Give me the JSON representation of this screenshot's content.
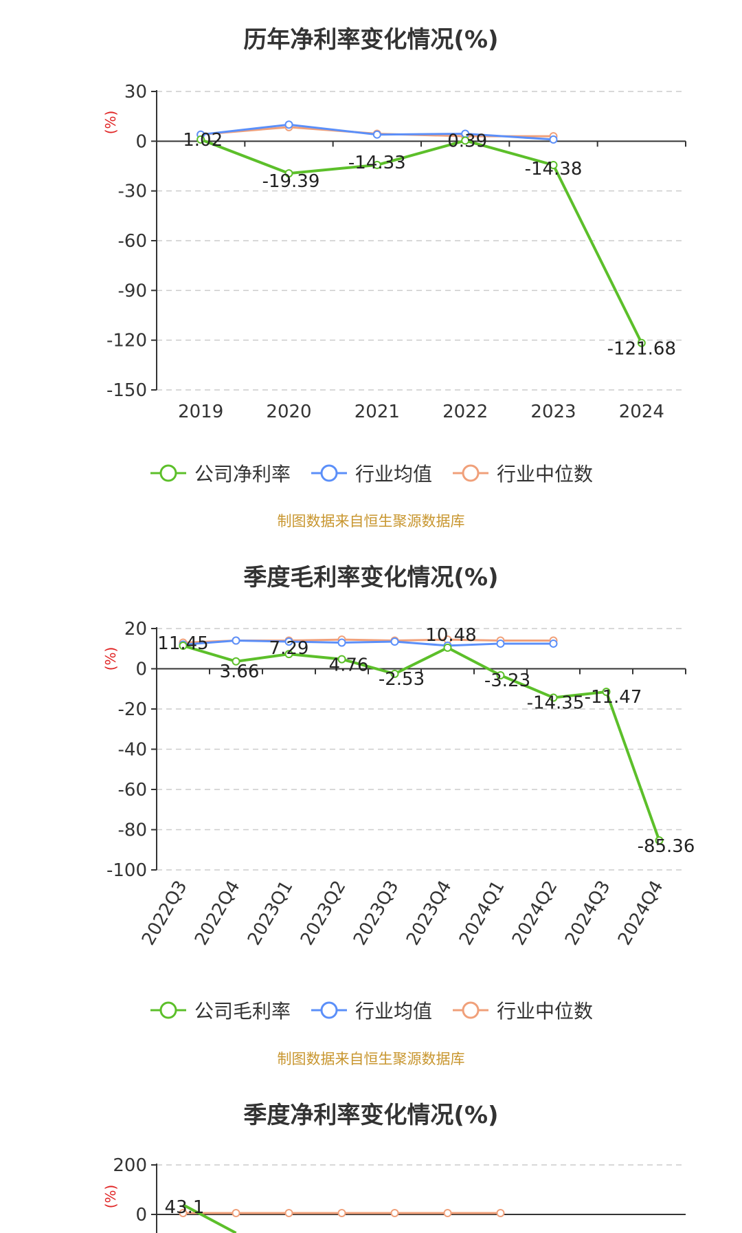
{
  "colors": {
    "company": "#5cbf2a",
    "avg": "#5b8ff9",
    "median": "#f0a07a",
    "grid": "#cccccc",
    "axis": "#333333"
  },
  "chart_data": [
    {
      "type": "line",
      "title": "历年净利率变化情况(%)",
      "ylabel": "(%)",
      "categories": [
        "2019",
        "2020",
        "2021",
        "2022",
        "2023",
        "2024"
      ],
      "ylim": [
        -150,
        30
      ],
      "yticks": [
        30,
        0,
        -30,
        -60,
        -90,
        -120,
        -150
      ],
      "series": [
        {
          "name": "公司净利率",
          "values": [
            1.02,
            -19.39,
            -14.33,
            0.39,
            -14.38,
            -121.68
          ],
          "labels": [
            "1.02",
            "-19.39",
            "-14.33",
            "0.39",
            "-14.38",
            "-121.68"
          ]
        },
        {
          "name": "行业均值",
          "values": [
            4,
            10,
            4,
            4.5,
            1,
            null
          ]
        },
        {
          "name": "行业中位数",
          "values": [
            4,
            8.5,
            4.5,
            3,
            3,
            null
          ]
        }
      ],
      "legend": [
        "公司净利率",
        "行业均值",
        "行业中位数"
      ],
      "source": "制图数据来自恒生聚源数据库"
    },
    {
      "type": "line",
      "title": "季度毛利率变化情况(%)",
      "ylabel": "(%)",
      "categories": [
        "2022Q3",
        "2022Q4",
        "2023Q1",
        "2023Q2",
        "2023Q3",
        "2023Q4",
        "2024Q1",
        "2024Q2",
        "2024Q3",
        "2024Q4"
      ],
      "ylim": [
        -100,
        20
      ],
      "yticks": [
        20,
        0,
        -20,
        -40,
        -60,
        -80,
        -100
      ],
      "series": [
        {
          "name": "公司毛利率",
          "values": [
            11.45,
            3.66,
            7.29,
            4.76,
            -2.53,
            10.48,
            -3.23,
            -14.35,
            -11.47,
            -85.36
          ],
          "labels": [
            "11.45",
            "3.66",
            "7.29",
            "4.76",
            "-2.53",
            "10.48",
            "-3.23",
            "-14.35",
            "-11.47",
            "-85.36"
          ]
        },
        {
          "name": "行业均值",
          "values": [
            12,
            14,
            13.5,
            13,
            13.5,
            11.5,
            12.5,
            12.5,
            null,
            null
          ]
        },
        {
          "name": "行业中位数",
          "values": [
            13,
            14,
            14,
            14.5,
            14,
            14.5,
            14,
            14,
            null,
            null
          ]
        }
      ],
      "legend": [
        "公司毛利率",
        "行业均值",
        "行业中位数"
      ],
      "source": "制图数据来自恒生聚源数据库"
    },
    {
      "type": "line",
      "title": "季度净利率变化情况(%)",
      "ylabel": "(%)",
      "ylim_visible_top": 200,
      "yticks": [
        200,
        0
      ],
      "series": [
        {
          "name": "公司净利率",
          "visible_labels": [
            "43.1"
          ]
        }
      ]
    }
  ]
}
